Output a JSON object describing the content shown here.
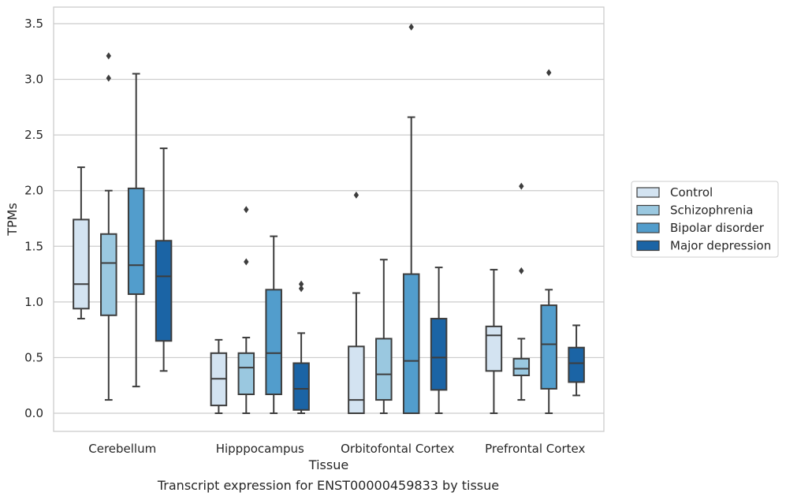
{
  "chart_data": {
    "type": "boxplot",
    "title": "",
    "caption": "Transcript expression for ENST00000459833 by tissue",
    "xlabel": "Tissue",
    "ylabel": "TPMs",
    "ylim": [
      -0.17,
      3.65
    ],
    "yticks": [
      "0.0",
      "0.5",
      "1.0",
      "1.5",
      "2.0",
      "2.5",
      "3.0",
      "3.5"
    ],
    "ytick_values": [
      0,
      0.5,
      1.0,
      1.5,
      2.0,
      2.5,
      3.0,
      3.5
    ],
    "grid": "horizontal",
    "legend_placement": "right",
    "categories": [
      "Cerebellum",
      "Hipppocampus",
      "Orbitofontal Cortex",
      "Prefrontal Cortex"
    ],
    "series": [
      {
        "name": "Control",
        "color": "#d3e3f1",
        "boxes": [
          {
            "whislo": 0.85,
            "q1": 0.94,
            "med": 1.16,
            "q3": 1.74,
            "whishi": 2.21,
            "fliers": []
          },
          {
            "whislo": 0.0,
            "q1": 0.07,
            "med": 0.31,
            "q3": 0.54,
            "whishi": 0.66,
            "fliers": []
          },
          {
            "whislo": 0.0,
            "q1": 0.0,
            "med": 0.12,
            "q3": 0.6,
            "whishi": 1.08,
            "fliers": [
              1.96
            ]
          },
          {
            "whislo": 0.0,
            "q1": 0.38,
            "med": 0.7,
            "q3": 0.78,
            "whishi": 1.29,
            "fliers": []
          }
        ]
      },
      {
        "name": "Schizophrenia",
        "color": "#9ac8e0",
        "boxes": [
          {
            "whislo": 0.12,
            "q1": 0.88,
            "med": 1.35,
            "q3": 1.61,
            "whishi": 2.0,
            "fliers": [
              3.01,
              3.21
            ]
          },
          {
            "whislo": 0.0,
            "q1": 0.17,
            "med": 0.41,
            "q3": 0.54,
            "whishi": 0.68,
            "fliers": [
              1.36,
              1.83
            ]
          },
          {
            "whislo": 0.0,
            "q1": 0.12,
            "med": 0.35,
            "q3": 0.67,
            "whishi": 1.38,
            "fliers": []
          },
          {
            "whislo": 0.12,
            "q1": 0.34,
            "med": 0.4,
            "q3": 0.49,
            "whishi": 0.67,
            "fliers": [
              1.28,
              2.04
            ]
          }
        ]
      },
      {
        "name": "Bipolar disorder",
        "color": "#529dcc",
        "boxes": [
          {
            "whislo": 0.24,
            "q1": 1.07,
            "med": 1.33,
            "q3": 2.02,
            "whishi": 3.05,
            "fliers": []
          },
          {
            "whislo": 0.0,
            "q1": 0.17,
            "med": 0.54,
            "q3": 1.11,
            "whishi": 1.59,
            "fliers": []
          },
          {
            "whislo": 0.0,
            "q1": 0.0,
            "med": 0.47,
            "q3": 1.25,
            "whishi": 2.66,
            "fliers": [
              3.47
            ]
          },
          {
            "whislo": 0.0,
            "q1": 0.22,
            "med": 0.62,
            "q3": 0.97,
            "whishi": 1.11,
            "fliers": [
              3.06
            ]
          }
        ]
      },
      {
        "name": "Major depression",
        "color": "#1b64a5",
        "boxes": [
          {
            "whislo": 0.38,
            "q1": 0.65,
            "med": 1.23,
            "q3": 1.55,
            "whishi": 2.38,
            "fliers": []
          },
          {
            "whislo": 0.0,
            "q1": 0.03,
            "med": 0.22,
            "q3": 0.45,
            "whishi": 0.72,
            "fliers": [
              1.12,
              1.16
            ]
          },
          {
            "whislo": 0.0,
            "q1": 0.21,
            "med": 0.5,
            "q3": 0.85,
            "whishi": 1.31,
            "fliers": []
          },
          {
            "whislo": 0.16,
            "q1": 0.28,
            "med": 0.45,
            "q3": 0.59,
            "whishi": 0.79,
            "fliers": []
          }
        ]
      }
    ]
  }
}
